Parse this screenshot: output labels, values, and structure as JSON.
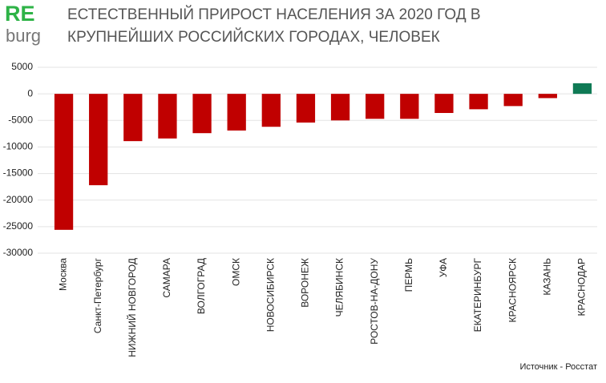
{
  "logo": {
    "re": "RE",
    "burg": "burg"
  },
  "chart_data": {
    "type": "bar",
    "title": [
      "ЕСТЕСТВЕННЫЙ ПРИРОСТ НАСЕЛЕНИЯ ЗА 2020 ГОД В",
      "КРУПНЕЙШИХ РОССИЙСКИХ ГОРОДАХ, ЧЕЛОВЕК"
    ],
    "categories": [
      "Москва",
      "Санкт-Петербург",
      "НИЖНИЙ НОВГОРОД",
      "САМАРА",
      "ВОЛГОГРАД",
      "ОМСК",
      "НОВОСИБИРСК",
      "ВОРОНЕЖ",
      "ЧЕЛЯБИНСК",
      "РОСТОВ-НА-ДОНУ",
      "ПЕРМЬ",
      "УФА",
      "ЕКАТЕРИНБУРГ",
      "КРАСНОЯРСК",
      "КАЗАНЬ",
      "КРАСНОДАР"
    ],
    "values": [
      -25600,
      -17200,
      -8900,
      -8400,
      -7400,
      -6900,
      -6200,
      -5400,
      -5000,
      -4700,
      -4700,
      -3600,
      -2900,
      -2300,
      -800,
      2000
    ],
    "colors": [
      "#c00000",
      "#c00000",
      "#c00000",
      "#c00000",
      "#c00000",
      "#c00000",
      "#c00000",
      "#c00000",
      "#c00000",
      "#c00000",
      "#c00000",
      "#c00000",
      "#c00000",
      "#c00000",
      "#c00000",
      "#0f7a55"
    ],
    "ylim": [
      -30000,
      5000
    ],
    "yticks": [
      5000,
      0,
      -5000,
      -10000,
      -15000,
      -20000,
      -25000,
      -30000
    ],
    "grid": true,
    "source": "Источник - Росстат"
  }
}
